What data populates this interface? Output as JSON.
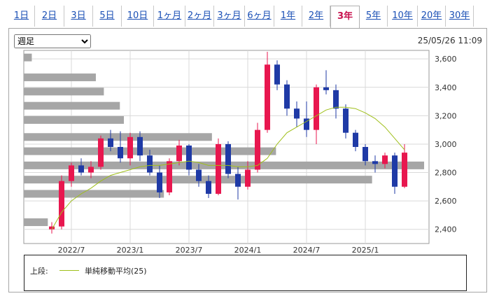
{
  "tabs": [
    {
      "label": "1日"
    },
    {
      "label": "2日"
    },
    {
      "label": "3日"
    },
    {
      "label": "5日"
    },
    {
      "label": "10日"
    },
    {
      "label": "1ヶ月"
    },
    {
      "label": "2ヶ月"
    },
    {
      "label": "3ヶ月"
    },
    {
      "label": "6ヶ月"
    },
    {
      "label": "1年"
    },
    {
      "label": "2年"
    },
    {
      "label": "3年"
    },
    {
      "label": "5年"
    },
    {
      "label": "10年"
    },
    {
      "label": "20年"
    },
    {
      "label": "30年"
    }
  ],
  "active_tab": "3年",
  "period_select": {
    "value": "週足",
    "options": [
      "週足"
    ]
  },
  "timestamp": "25/05/26 11:09",
  "legend": {
    "label": "上段:",
    "ma_text": "単純移動平均(25)",
    "ma_color": "#9fbf1a"
  },
  "colors": {
    "up": "#e8174f",
    "down": "#1f3aa6",
    "volume_profile": "#a6a6a6",
    "grid": "#d9d9d9"
  },
  "chart_data": {
    "type": "candlestick",
    "x_ticks": [
      "2022/7",
      "2023/1",
      "2023/7",
      "2024/1",
      "2024/7",
      "2025/1"
    ],
    "y_ticks": [
      2400,
      2600,
      2800,
      3000,
      3200,
      3400,
      3600
    ],
    "ylim": [
      2300,
      3660
    ],
    "price_profile": [
      {
        "price": 3610,
        "volume": 0.02
      },
      {
        "price": 3470,
        "volume": 0.18
      },
      {
        "price": 3370,
        "volume": 0.2
      },
      {
        "price": 3270,
        "volume": 0.24
      },
      {
        "price": 3170,
        "volume": 0.25
      },
      {
        "price": 3050,
        "volume": 0.47
      },
      {
        "price": 2950,
        "volume": 0.63
      },
      {
        "price": 2850,
        "volume": 1.0
      },
      {
        "price": 2750,
        "volume": 0.87
      },
      {
        "price": 2650,
        "volume": 0.35
      },
      {
        "price": 2450,
        "volume": 0.06
      }
    ],
    "candles": [
      {
        "d": "2022/5",
        "o": 2400,
        "h": 2450,
        "l": 2370,
        "c": 2420
      },
      {
        "d": "2022/6",
        "o": 2420,
        "h": 2780,
        "l": 2400,
        "c": 2740
      },
      {
        "d": "2022/7",
        "o": 2740,
        "h": 2870,
        "l": 2700,
        "c": 2850
      },
      {
        "d": "2022/8",
        "o": 2850,
        "h": 2900,
        "l": 2780,
        "c": 2800
      },
      {
        "d": "2022/9",
        "o": 2800,
        "h": 2880,
        "l": 2760,
        "c": 2840
      },
      {
        "d": "2022/10",
        "o": 2840,
        "h": 3060,
        "l": 2820,
        "c": 3040
      },
      {
        "d": "2022/11",
        "o": 3040,
        "h": 3100,
        "l": 2950,
        "c": 2980
      },
      {
        "d": "2022/12",
        "o": 2980,
        "h": 3090,
        "l": 2870,
        "c": 2900
      },
      {
        "d": "2023/1",
        "o": 2900,
        "h": 3080,
        "l": 2850,
        "c": 3050
      },
      {
        "d": "2023/2",
        "o": 3050,
        "h": 3090,
        "l": 2880,
        "c": 2920
      },
      {
        "d": "2023/3",
        "o": 2920,
        "h": 2960,
        "l": 2780,
        "c": 2800
      },
      {
        "d": "2023/4",
        "o": 2800,
        "h": 2850,
        "l": 2620,
        "c": 2660
      },
      {
        "d": "2023/5",
        "o": 2660,
        "h": 2900,
        "l": 2640,
        "c": 2880
      },
      {
        "d": "2023/6",
        "o": 2880,
        "h": 3030,
        "l": 2850,
        "c": 2990
      },
      {
        "d": "2023/7",
        "o": 2990,
        "h": 3000,
        "l": 2780,
        "c": 2820
      },
      {
        "d": "2023/8",
        "o": 2820,
        "h": 2860,
        "l": 2700,
        "c": 2740
      },
      {
        "d": "2023/9",
        "o": 2740,
        "h": 2780,
        "l": 2620,
        "c": 2650
      },
      {
        "d": "2023/10",
        "o": 2650,
        "h": 3040,
        "l": 2640,
        "c": 3000
      },
      {
        "d": "2023/11",
        "o": 3000,
        "h": 3020,
        "l": 2760,
        "c": 2790
      },
      {
        "d": "2023/12",
        "o": 2790,
        "h": 2840,
        "l": 2610,
        "c": 2700
      },
      {
        "d": "2024/1",
        "o": 2700,
        "h": 2880,
        "l": 2680,
        "c": 2820
      },
      {
        "d": "2024/2",
        "o": 2820,
        "h": 3150,
        "l": 2800,
        "c": 3100
      },
      {
        "d": "2024/3",
        "o": 3100,
        "h": 3650,
        "l": 3080,
        "c": 3560
      },
      {
        "d": "2024/4",
        "o": 3560,
        "h": 3590,
        "l": 3380,
        "c": 3420
      },
      {
        "d": "2024/5",
        "o": 3420,
        "h": 3450,
        "l": 3200,
        "c": 3250
      },
      {
        "d": "2024/6",
        "o": 3250,
        "h": 3300,
        "l": 3120,
        "c": 3180
      },
      {
        "d": "2024/7",
        "o": 3180,
        "h": 3300,
        "l": 3050,
        "c": 3100
      },
      {
        "d": "2024/8",
        "o": 3100,
        "h": 3420,
        "l": 3000,
        "c": 3400
      },
      {
        "d": "2024/9",
        "o": 3400,
        "h": 3520,
        "l": 3350,
        "c": 3380
      },
      {
        "d": "2024/10",
        "o": 3380,
        "h": 3420,
        "l": 3180,
        "c": 3250
      },
      {
        "d": "2024/11",
        "o": 3250,
        "h": 3280,
        "l": 3040,
        "c": 3080
      },
      {
        "d": "2024/12",
        "o": 3080,
        "h": 3100,
        "l": 2950,
        "c": 2980
      },
      {
        "d": "2025/1",
        "o": 2980,
        "h": 3000,
        "l": 2850,
        "c": 2880
      },
      {
        "d": "2025/2",
        "o": 2880,
        "h": 2920,
        "l": 2800,
        "c": 2860
      },
      {
        "d": "2025/3",
        "o": 2860,
        "h": 2940,
        "l": 2830,
        "c": 2920
      },
      {
        "d": "2025/4",
        "o": 2920,
        "h": 2940,
        "l": 2650,
        "c": 2700
      },
      {
        "d": "2025/5",
        "o": 2700,
        "h": 3000,
        "l": 2690,
        "c": 2940
      }
    ],
    "ma": [
      2400,
      2520,
      2600,
      2650,
      2690,
      2740,
      2780,
      2800,
      2820,
      2840,
      2850,
      2850,
      2860,
      2870,
      2880,
      2870,
      2850,
      2850,
      2850,
      2840,
      2840,
      2850,
      2900,
      3000,
      3080,
      3120,
      3160,
      3200,
      3240,
      3260,
      3260,
      3250,
      3220,
      3180,
      3120,
      3040,
      2960
    ]
  }
}
